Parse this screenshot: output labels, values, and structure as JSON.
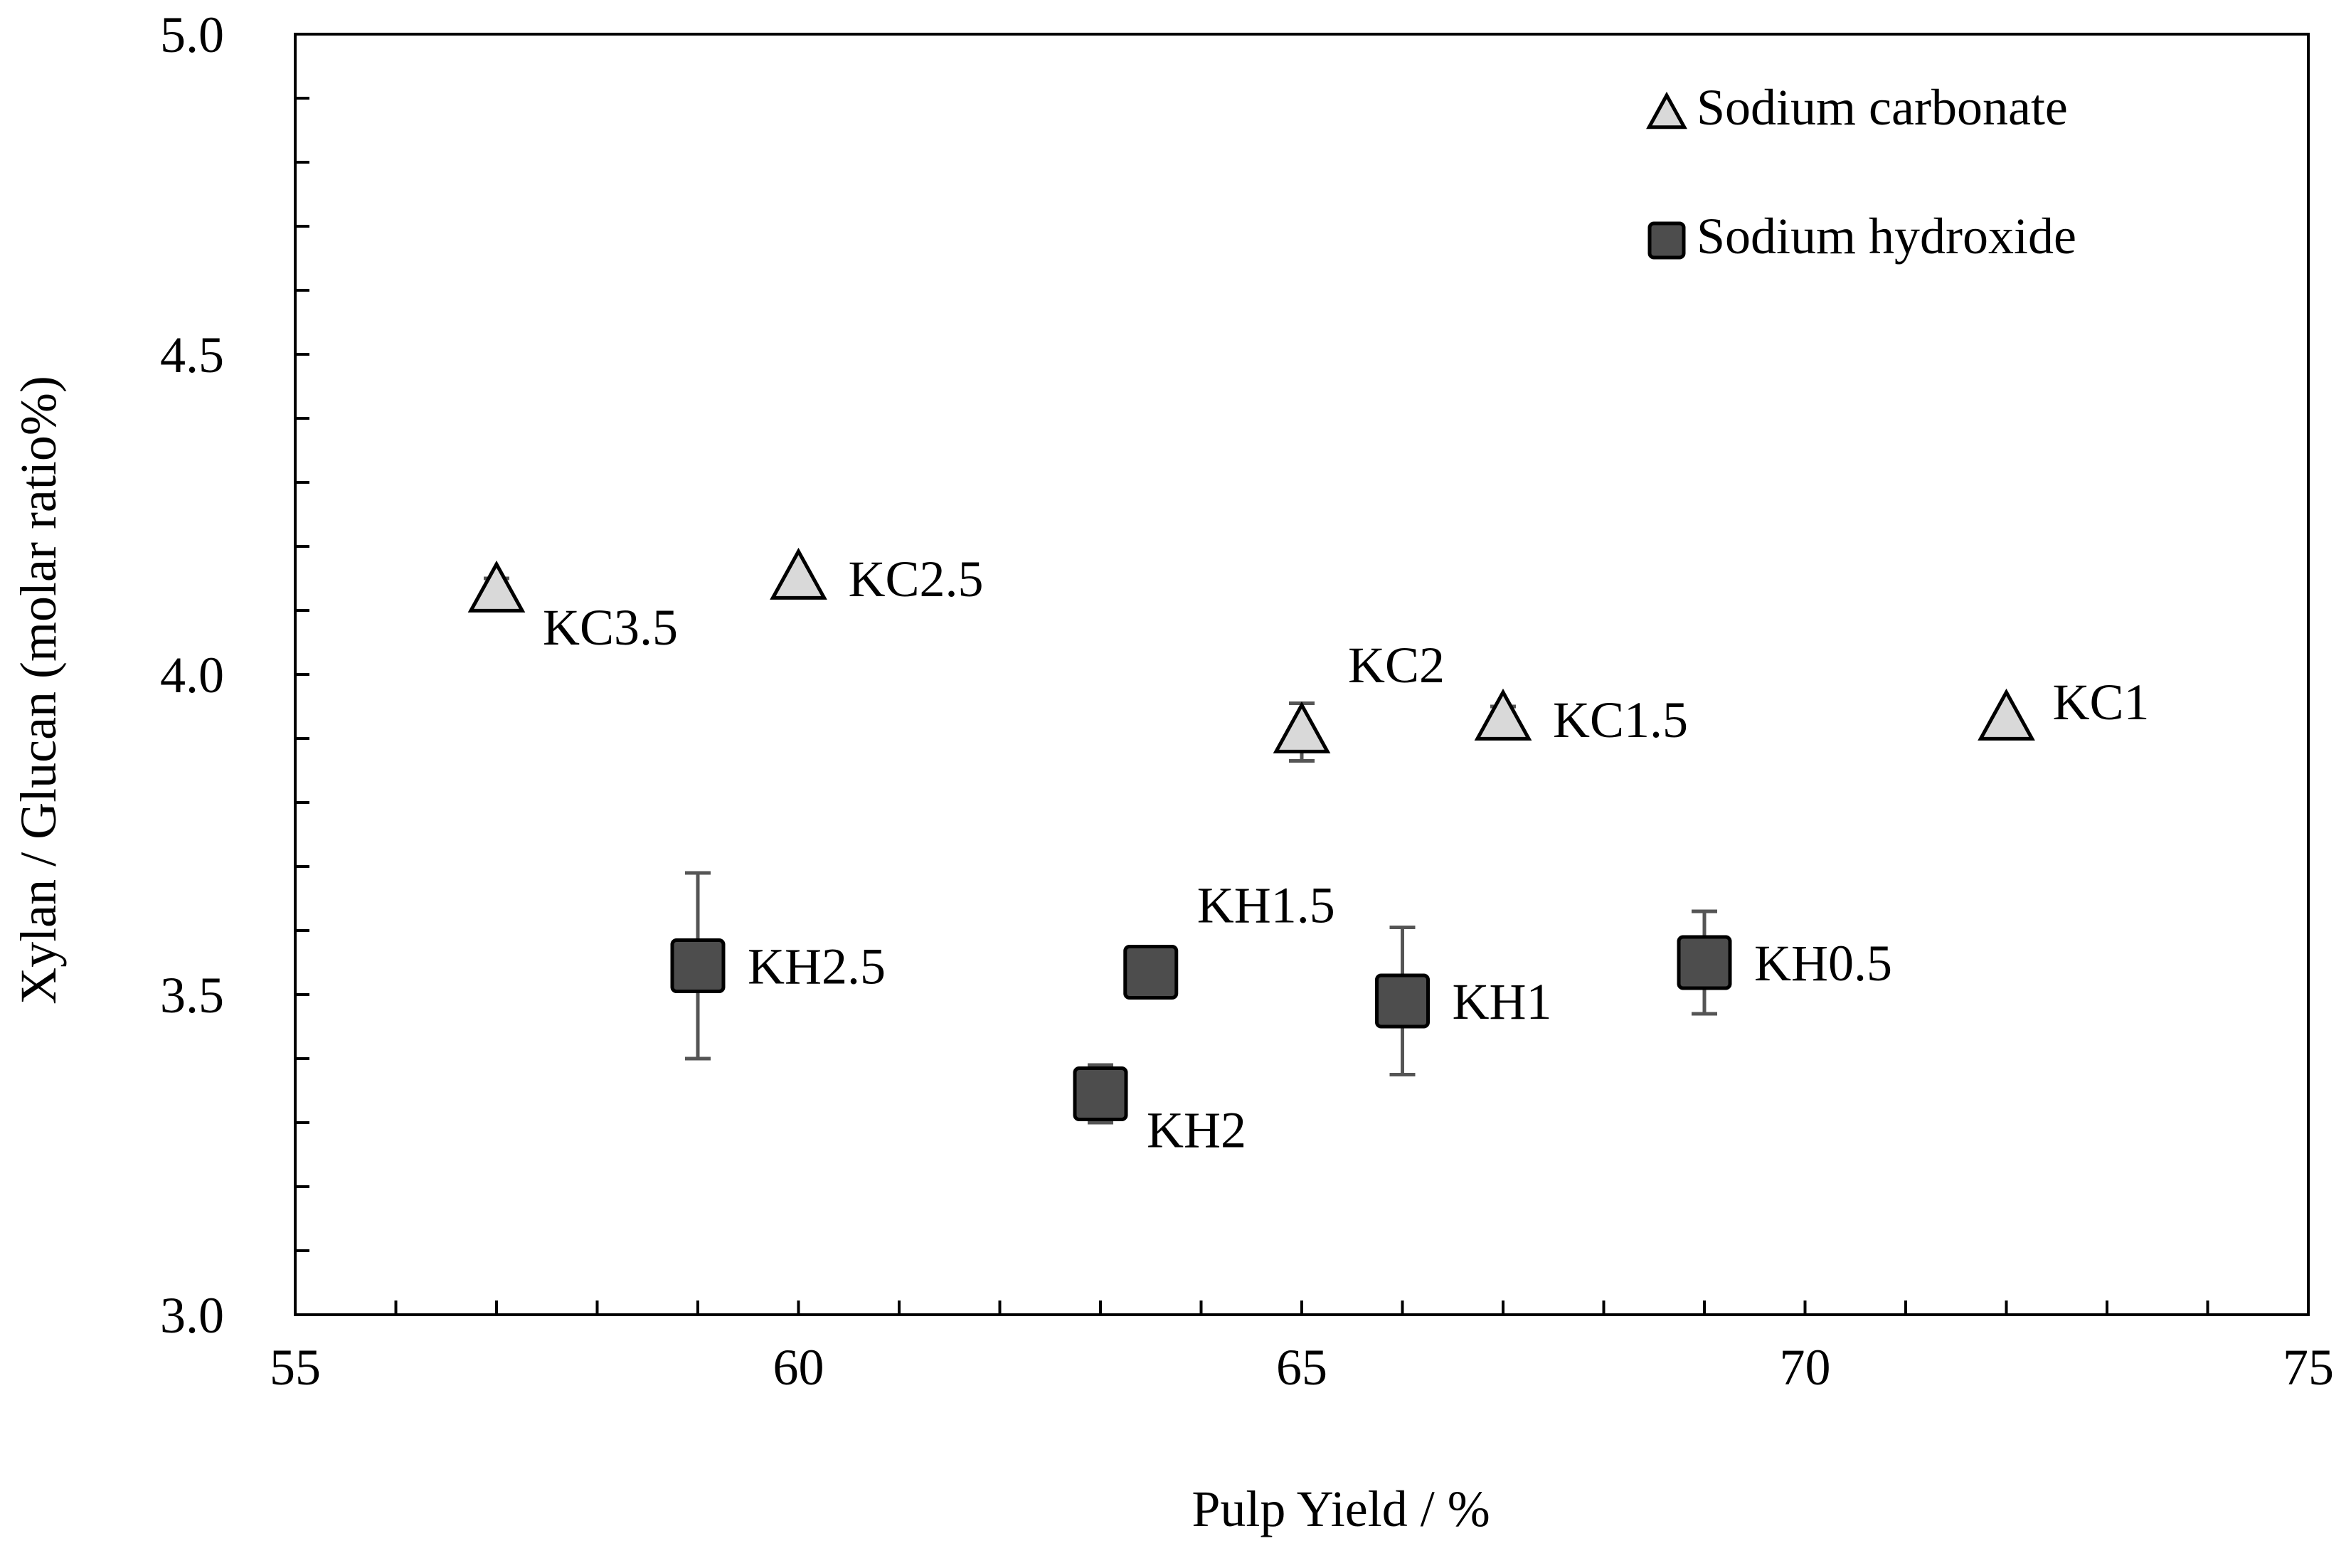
{
  "chart_data": {
    "type": "scatter",
    "title": "",
    "xlabel": "Pulp Yield / %",
    "ylabel": "Xylan / Glucan (molar ratio%)",
    "xlim": [
      55,
      75
    ],
    "ylim": [
      3.0,
      5.0
    ],
    "x_ticks": [
      55,
      60,
      65,
      70,
      75
    ],
    "x_tick_labels": [
      "55",
      "60",
      "65",
      "70",
      "75"
    ],
    "x_minor_step": 1,
    "y_ticks": [
      3.0,
      3.5,
      4.0,
      4.5,
      5.0
    ],
    "y_tick_labels": [
      "3.0",
      "3.5",
      "4.0",
      "4.5",
      "5.0"
    ],
    "y_minor_step": 0.1,
    "grid": false,
    "legend_position": "top-right",
    "series": [
      {
        "name": "Sodium carbonate",
        "marker": "triangle",
        "fill": "#d9d9d9",
        "edge": "#000000",
        "points": [
          {
            "label": "KC3.5",
            "x": 57.0,
            "y": 4.13,
            "err": 0.02,
            "label_pos": "below-right"
          },
          {
            "label": "KC2.5",
            "x": 60.0,
            "y": 4.15,
            "err": 0.0,
            "label_pos": "right"
          },
          {
            "label": "KC2",
            "x": 65.0,
            "y": 3.91,
            "err": 0.045,
            "label_pos": "above-right"
          },
          {
            "label": "KC1.5",
            "x": 67.0,
            "y": 3.93,
            "err": 0.02,
            "label_pos": "right"
          },
          {
            "label": "KC1",
            "x": 72.0,
            "y": 3.93,
            "err": 0.0,
            "label_pos": "right-up"
          }
        ]
      },
      {
        "name": "Sodium hydroxide",
        "marker": "square",
        "fill": "#4d4d4d",
        "edge": "#000000",
        "points": [
          {
            "label": "KH2.5",
            "x": 59.0,
            "y": 3.545,
            "err": 0.145,
            "label_pos": "right"
          },
          {
            "label": "KH2",
            "x": 63.0,
            "y": 3.345,
            "err": 0.045,
            "label_pos": "below-right"
          },
          {
            "label": "KH1.5",
            "x": 63.5,
            "y": 3.535,
            "err": 0.0,
            "label_pos": "above-right"
          },
          {
            "label": "KH1",
            "x": 66.0,
            "y": 3.49,
            "err": 0.115,
            "label_pos": "right"
          },
          {
            "label": "KH0.5",
            "x": 69.0,
            "y": 3.55,
            "err": 0.08,
            "label_pos": "right"
          }
        ]
      }
    ]
  }
}
